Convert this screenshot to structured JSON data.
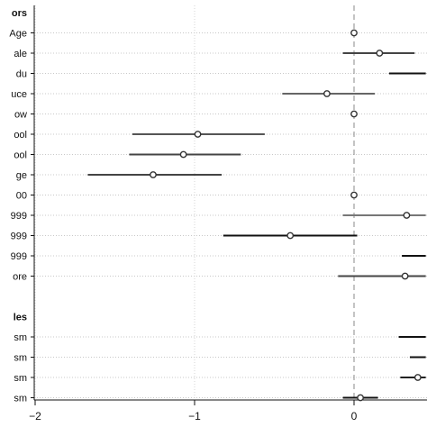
{
  "chart_data": {
    "type": "scatter",
    "subtype": "coefficient-plot",
    "title": "",
    "xlabel": "",
    "ylabel": "",
    "xlim": [
      -2.0,
      0.45
    ],
    "x_ticks": [
      -2,
      -1,
      0
    ],
    "x_tick_labels": [
      "−2",
      "−1",
      "0"
    ],
    "reference_line": 0,
    "grid": "dotted horizontal row guides",
    "groups": [
      {
        "header": "ors"
      },
      {
        "header": "les"
      }
    ],
    "rows": [
      {
        "label": "Age",
        "group": 0,
        "estimate": 0.0,
        "ci": [
          0.0,
          0.0
        ],
        "shade": "#444444"
      },
      {
        "label": "ale",
        "group": 0,
        "estimate": 0.16,
        "ci": [
          -0.07,
          0.38
        ],
        "shade": "#444444"
      },
      {
        "label": "du",
        "group": 0,
        "estimate": null,
        "ci": [
          0.22,
          0.45
        ],
        "shade": "#111111"
      },
      {
        "label": "uce",
        "group": 0,
        "estimate": -0.17,
        "ci": [
          -0.45,
          0.13
        ],
        "shade": "#666666"
      },
      {
        "label": "ow",
        "group": 0,
        "estimate": 0.0,
        "ci": [
          0.0,
          0.0
        ],
        "shade": "#444444"
      },
      {
        "label": "ool",
        "group": 0,
        "estimate": -0.98,
        "ci": [
          -1.39,
          -0.56
        ],
        "shade": "#555555"
      },
      {
        "label": "ool",
        "group": 0,
        "estimate": -1.07,
        "ci": [
          -1.41,
          -0.71
        ],
        "shade": "#444444"
      },
      {
        "label": "ge",
        "group": 0,
        "estimate": -1.26,
        "ci": [
          -1.67,
          -0.83
        ],
        "shade": "#444444"
      },
      {
        "label": "00",
        "group": 0,
        "estimate": 0.0,
        "ci": [
          0.0,
          0.0
        ],
        "shade": "#444444"
      },
      {
        "label": "999",
        "group": 0,
        "estimate": 0.33,
        "ci": [
          -0.07,
          0.45
        ],
        "shade": "#777777"
      },
      {
        "label": "999",
        "group": 0,
        "estimate": -0.4,
        "ci": [
          -0.82,
          0.02
        ],
        "shade": "#111111"
      },
      {
        "label": "999",
        "group": 0,
        "estimate": null,
        "ci": [
          0.3,
          0.45
        ],
        "shade": "#111111"
      },
      {
        "label": "ore",
        "group": 0,
        "estimate": 0.32,
        "ci": [
          -0.1,
          0.45
        ],
        "shade": "#444444"
      },
      {
        "label": "sm",
        "group": 1,
        "estimate": null,
        "ci": [
          0.28,
          0.45
        ],
        "shade": "#111111"
      },
      {
        "label": "sm",
        "group": 1,
        "estimate": null,
        "ci": [
          0.35,
          0.45
        ],
        "shade": "#111111"
      },
      {
        "label": "sm",
        "group": 1,
        "estimate": 0.4,
        "ci": [
          0.29,
          0.45
        ],
        "shade": "#222222"
      },
      {
        "label": "sm",
        "group": 1,
        "estimate": 0.04,
        "ci": [
          -0.07,
          0.15
        ],
        "shade": "#111111"
      }
    ]
  }
}
